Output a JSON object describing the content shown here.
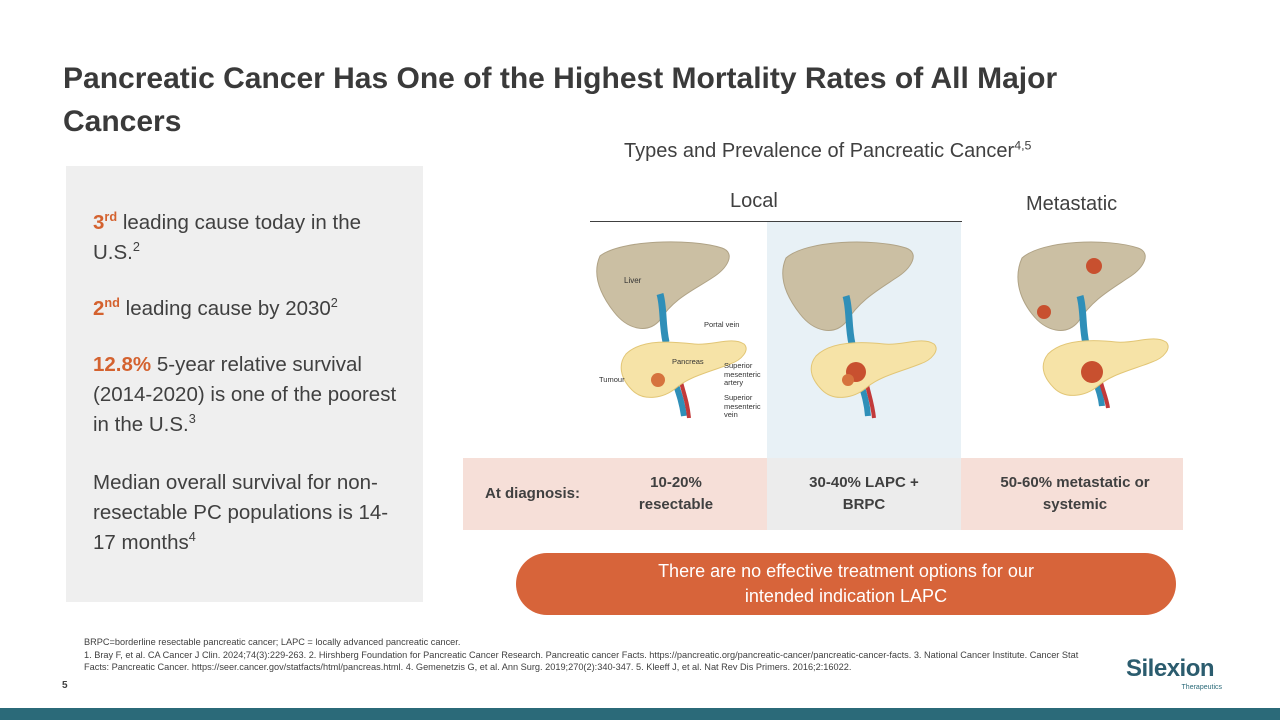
{
  "title": "Pancreatic Cancer Has One of the Highest Mortality Rates of All Major Cancers",
  "stats": {
    "s1": {
      "hl": "3",
      "hl_sup": "rd",
      "text": " leading cause today in the U.S.",
      "sup": "2"
    },
    "s2": {
      "hl": "2",
      "hl_sup": "nd",
      "text": " leading cause by 2030",
      "sup": "2"
    },
    "s3": {
      "hl": "12.8%",
      "text": " 5-year relative survival (2014-2020) is one of the poorest in the U.S.",
      "sup": "3"
    },
    "s4": {
      "text": "Median overall survival for non-resectable PC populations is 14-17 months",
      "sup": "4"
    }
  },
  "figure": {
    "title": "Types and Prevalence of Pancreatic Cancer",
    "title_sup": "4,5",
    "local_label": "Local",
    "metastatic_label": "Metastatic",
    "anatomy": {
      "liver": "Liver",
      "portal_vein": "Portal vein",
      "pancreas": "Pancreas",
      "tumour": "Tumour",
      "sma": "Superior mesenteric artery",
      "smv": "Superior mesenteric vein"
    }
  },
  "diagnosis": {
    "row_label": "At diagnosis:",
    "resectable": "10-20% resectable",
    "lapc": "30-40% LAPC + BRPC",
    "metastatic": "50-60% metastatic or systemic"
  },
  "callout": "There are no effective treatment options for our intended indication LAPC",
  "footnotes": {
    "abbrev": "BRPC=borderline resectable pancreatic cancer; LAPC = locally advanced pancreatic cancer.",
    "refs": "1. Bray F, et al. CA Cancer J Clin. 2024;74(3):229-263. 2. Hirshberg Foundation for Pancreatic Cancer Research. Pancreatic cancer Facts. https://pancreatic.org/pancreatic-cancer/pancreatic-cancer-facts. 3. National Cancer Institute. Cancer Stat Facts: Pancreatic Cancer. https://seer.cancer.gov/statfacts/html/pancreas.html. 4. Gemenetzis G, et al. Ann Surg. 2019;270(2):340-347. 5. Kleeff J, et al. Nat Rev Dis Primers. 2016;2:16022."
  },
  "page_number": "5",
  "logo": {
    "name": "Silexion",
    "tagline": "Therapeutics"
  },
  "colors": {
    "accent": "#d7643a",
    "highlight_text": "#d4622f",
    "bar": "#2b6a79",
    "panel": "#efefef"
  }
}
